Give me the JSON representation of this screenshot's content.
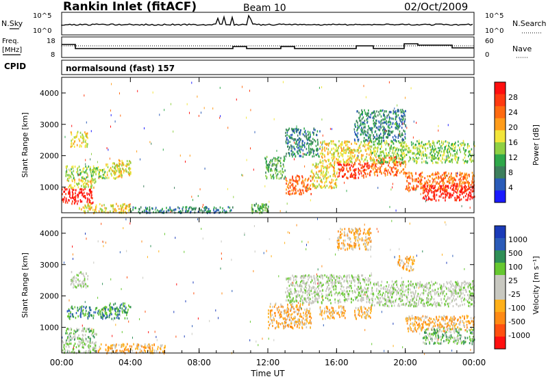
{
  "header": {
    "title": "Rankin Inlet (fitACF)",
    "beam": "Beam 10",
    "date": "02/Oct/2009"
  },
  "noise_panel": {
    "left_label": "N.Sky",
    "right_label": "N.Search",
    "left_ticks": [
      "10^5",
      "10^0"
    ],
    "right_ticks": [
      "10^5",
      "10^0"
    ]
  },
  "freq_panel": {
    "left_label_1": "Freq.",
    "left_label_2": "[MHz]",
    "right_label": "Nave",
    "left_ticks": [
      "18",
      "8"
    ],
    "right_ticks": [
      "60",
      "0"
    ]
  },
  "cpid": {
    "label": "CPID",
    "text": "normalsound (fast) 157"
  },
  "colors": {
    "power_scale": [
      "#1a1aff",
      "#2a5bb8",
      "#3d7f5c",
      "#2fa84a",
      "#8fd043",
      "#f2e53a",
      "#ff9c1a",
      "#ff6a10",
      "#ff3a10",
      "#ff0f0f"
    ],
    "velocity_scale": [
      "#ff1010",
      "#ff5010",
      "#ff8a14",
      "#ffb01a",
      "#c8c8c0",
      "#c8c8c0",
      "#66c830",
      "#2f8f57",
      "#2a5bb8",
      "#1a3ab8"
    ]
  },
  "chart_data": [
    {
      "type": "heatmap",
      "panel": "power",
      "x": {
        "label": "",
        "range": [
          0,
          24
        ],
        "ticks": [
          "00:00",
          "04:00",
          "08:00",
          "12:00",
          "16:00",
          "20:00",
          "00:00"
        ]
      },
      "y": {
        "label": "Slant Range [km]",
        "range": [
          180,
          4500
        ],
        "ticks": [
          1000,
          2000,
          3000,
          4000
        ]
      },
      "colorbar": {
        "label": "Power [dB]",
        "ticks": [
          "4",
          "8",
          "12",
          "16",
          "20",
          "24",
          "28"
        ]
      },
      "bands": [
        {
          "t": [
            0.0,
            1.8
          ],
          "r": [
            500,
            1000
          ],
          "v": 26
        },
        {
          "t": [
            0.3,
            2.0
          ],
          "r": [
            1000,
            1300
          ],
          "v": 16
        },
        {
          "t": [
            0.2,
            2.5
          ],
          "r": [
            1300,
            1700
          ],
          "v": 12
        },
        {
          "t": [
            0.5,
            1.5
          ],
          "r": [
            2300,
            2800
          ],
          "v": 14
        },
        {
          "t": [
            2.5,
            3.5
          ],
          "r": [
            1300,
            1800
          ],
          "v": 14
        },
        {
          "t": [
            3.3,
            4.0
          ],
          "r": [
            1400,
            1900
          ],
          "v": 14
        },
        {
          "t": [
            1.0,
            4.0
          ],
          "r": [
            200,
            500
          ],
          "v": 14
        },
        {
          "t": [
            4.0,
            10.0
          ],
          "r": [
            200,
            400
          ],
          "v": 6
        },
        {
          "t": [
            11.0,
            12.0
          ],
          "r": [
            200,
            500
          ],
          "v": 8
        },
        {
          "t": [
            11.8,
            13.0
          ],
          "r": [
            1300,
            2000
          ],
          "v": 8
        },
        {
          "t": [
            13.0,
            14.5
          ],
          "r": [
            800,
            1400
          ],
          "v": 20
        },
        {
          "t": [
            14.5,
            16.0
          ],
          "r": [
            1000,
            1800
          ],
          "v": 14
        },
        {
          "t": [
            13.0,
            15.0
          ],
          "r": [
            2000,
            2900
          ],
          "v": 6
        },
        {
          "t": [
            15.0,
            18.0
          ],
          "r": [
            1800,
            2500
          ],
          "v": 14
        },
        {
          "t": [
            16.0,
            18.0
          ],
          "r": [
            1300,
            1800
          ],
          "v": 24
        },
        {
          "t": [
            18.0,
            20.0
          ],
          "r": [
            1400,
            2000
          ],
          "v": 22
        },
        {
          "t": [
            18.0,
            24.0
          ],
          "r": [
            1800,
            2500
          ],
          "v": 12
        },
        {
          "t": [
            20.0,
            24.0
          ],
          "r": [
            900,
            1500
          ],
          "v": 20
        },
        {
          "t": [
            21.0,
            24.0
          ],
          "r": [
            600,
            1100
          ],
          "v": 28
        },
        {
          "t": [
            17.0,
            20.0
          ],
          "r": [
            2500,
            3500
          ],
          "v": 6
        }
      ]
    },
    {
      "type": "heatmap",
      "panel": "velocity",
      "x": {
        "label": "Time UT",
        "range": [
          0,
          24
        ],
        "ticks": [
          "00:00",
          "04:00",
          "08:00",
          "12:00",
          "16:00",
          "20:00",
          "00:00"
        ]
      },
      "y": {
        "label": "Slant Range [km]",
        "range": [
          180,
          4500
        ],
        "ticks": [
          1000,
          2000,
          3000,
          4000
        ]
      },
      "colorbar": {
        "label": "Velocity [m s⁻¹]",
        "ticks": [
          "1000",
          "500",
          "100",
          "25",
          "-25",
          "-100",
          "-500",
          "-1000"
        ]
      },
      "bands": [
        {
          "t": [
            0.3,
            2.5
          ],
          "r": [
            1300,
            1700
          ],
          "v": 150
        },
        {
          "t": [
            2.5,
            4.0
          ],
          "r": [
            1300,
            1800
          ],
          "v": 150
        },
        {
          "t": [
            0.2,
            2.0
          ],
          "r": [
            600,
            1000
          ],
          "v": 100
        },
        {
          "t": [
            0.5,
            1.5
          ],
          "r": [
            2300,
            2800
          ],
          "v": 0
        },
        {
          "t": [
            0.0,
            2.0
          ],
          "r": [
            200,
            600
          ],
          "v": 0
        },
        {
          "t": [
            12.0,
            14.5
          ],
          "r": [
            1000,
            1800
          ],
          "v": -400
        },
        {
          "t": [
            13.0,
            18.0
          ],
          "r": [
            1800,
            2700
          ],
          "v": 0
        },
        {
          "t": [
            15.0,
            16.5
          ],
          "r": [
            1300,
            1700
          ],
          "v": -400
        },
        {
          "t": [
            17.0,
            18.0
          ],
          "r": [
            1300,
            1700
          ],
          "v": -300
        },
        {
          "t": [
            18.0,
            24.0
          ],
          "r": [
            1700,
            2500
          ],
          "v": 0
        },
        {
          "t": [
            20.0,
            24.0
          ],
          "r": [
            900,
            1400
          ],
          "v": -300
        },
        {
          "t": [
            21.0,
            24.0
          ],
          "r": [
            500,
            1000
          ],
          "v": 100
        },
        {
          "t": [
            16.0,
            18.0
          ],
          "r": [
            3500,
            4200
          ],
          "v": -300
        },
        {
          "t": [
            19.5,
            20.5
          ],
          "r": [
            2800,
            3300
          ],
          "v": -300
        },
        {
          "t": [
            2.0,
            6.0
          ],
          "r": [
            200,
            500
          ],
          "v": -200
        }
      ]
    }
  ]
}
